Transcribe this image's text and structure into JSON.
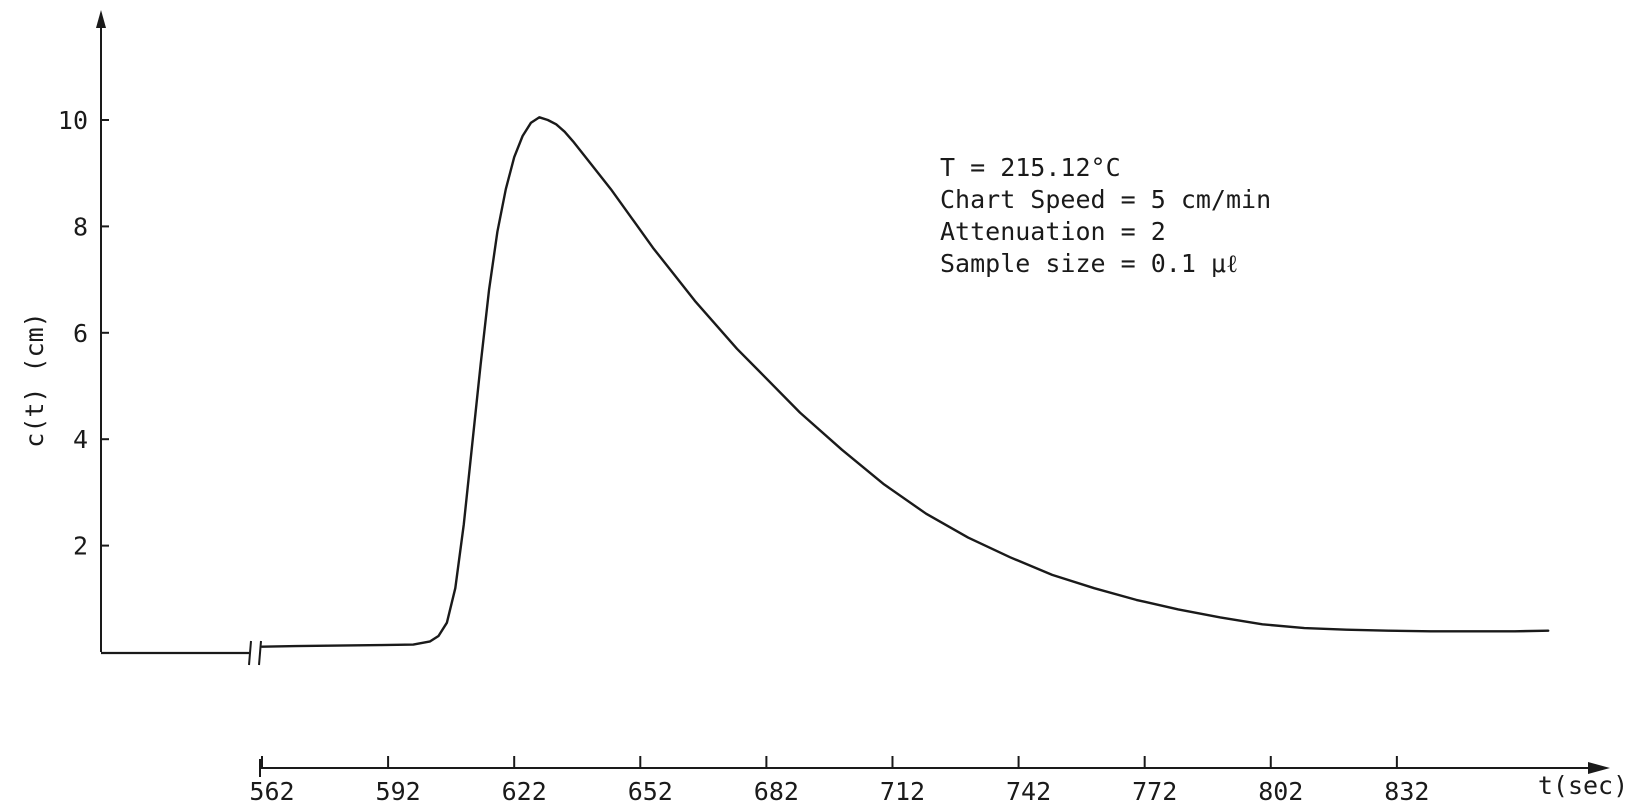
{
  "chart_data": {
    "type": "line",
    "title": "",
    "xlabel": "t(sec)",
    "ylabel": "c(t) (cm)",
    "x_ticks": [
      562,
      592,
      622,
      652,
      682,
      712,
      742,
      772,
      802,
      832
    ],
    "y_ticks": [
      2,
      4,
      6,
      8,
      10
    ],
    "xlim": [
      562,
      872
    ],
    "ylim": [
      0,
      10
    ],
    "grid": false,
    "axis_break": true,
    "pre_break_baseline": 0.0,
    "series": [
      {
        "x": [
          562,
          570,
          580,
          590,
          598,
          602,
          604,
          606,
          608,
          610,
          612,
          614,
          616,
          618,
          620,
          622,
          624,
          626,
          628,
          630,
          632,
          634,
          636,
          640,
          645,
          650,
          655,
          660,
          665,
          670,
          675,
          680,
          690,
          700,
          710,
          720,
          730,
          740,
          750,
          760,
          770,
          780,
          790,
          800,
          810,
          820,
          830,
          840,
          850,
          860,
          868
        ],
        "y": [
          0.1,
          0.11,
          0.12,
          0.13,
          0.14,
          0.2,
          0.3,
          0.55,
          1.2,
          2.4,
          3.9,
          5.4,
          6.8,
          7.9,
          8.7,
          9.3,
          9.7,
          9.95,
          10.05,
          10.0,
          9.92,
          9.78,
          9.6,
          9.2,
          8.7,
          8.15,
          7.6,
          7.1,
          6.6,
          6.15,
          5.7,
          5.3,
          4.5,
          3.8,
          3.15,
          2.6,
          2.15,
          1.78,
          1.45,
          1.2,
          0.98,
          0.8,
          0.65,
          0.52,
          0.45,
          0.42,
          0.4,
          0.39,
          0.39,
          0.39,
          0.4
        ]
      }
    ]
  },
  "annotations": {
    "line1": "T = 215.12°C",
    "line2": "Chart Speed = 5 cm/min",
    "line3": "Attenuation = 2",
    "line4": "Sample size = 0.1 μℓ"
  }
}
